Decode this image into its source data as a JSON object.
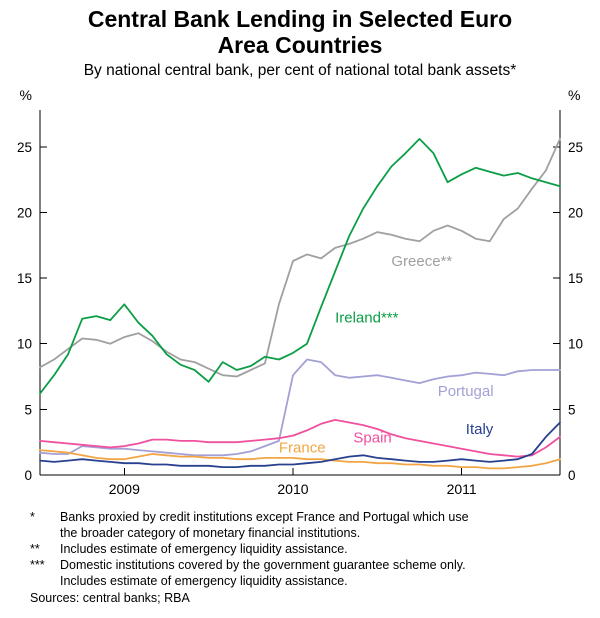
{
  "chart_data": {
    "type": "line",
    "title": "Central Bank Lending in Selected Euro\nArea Countries",
    "subtitle": "By national central bank, per cent of national total bank assets*",
    "unit_left": "%",
    "unit_right": "%",
    "ylim": [
      0,
      27.8
    ],
    "yticks": [
      0,
      5,
      10,
      15,
      20,
      25
    ],
    "grid": false,
    "legend": "inline-labels",
    "x_months": {
      "start": "2008-07",
      "end": "2011-08",
      "count": 38
    },
    "year_ticks": [
      {
        "label": "2009",
        "month_index": 6
      },
      {
        "label": "2010",
        "month_index": 18
      },
      {
        "label": "2011",
        "month_index": 30
      }
    ],
    "series": [
      {
        "id": "greece",
        "name": "Greece",
        "label": "Greece**",
        "color": "#a0a0a0",
        "label_pos": {
          "m": 25,
          "v": 16.3
        },
        "values": [
          8.2,
          8.8,
          9.6,
          10.4,
          10.3,
          10.0,
          10.5,
          10.8,
          10.2,
          9.4,
          8.8,
          8.6,
          8.1,
          7.6,
          7.5,
          8.0,
          8.5,
          13.0,
          16.3,
          16.8,
          16.5,
          17.3,
          17.6,
          18.0,
          18.5,
          18.3,
          18.0,
          17.8,
          18.6,
          19.0,
          18.6,
          18.0,
          17.8,
          19.5,
          20.3,
          21.8,
          23.2,
          25.6
        ]
      },
      {
        "id": "portugal",
        "name": "Portugal",
        "label": "Portugal",
        "color": "#a3a0d6",
        "label_pos": {
          "m": 28.3,
          "v": 6.4
        },
        "values": [
          1.7,
          1.6,
          1.6,
          2.2,
          2.1,
          2.0,
          2.0,
          1.9,
          1.8,
          1.7,
          1.6,
          1.5,
          1.5,
          1.5,
          1.6,
          1.8,
          2.2,
          2.6,
          7.6,
          8.8,
          8.6,
          7.6,
          7.4,
          7.5,
          7.6,
          7.4,
          7.2,
          7.0,
          7.3,
          7.5,
          7.6,
          7.8,
          7.7,
          7.6,
          7.9,
          8.0,
          8.0,
          8.0
        ]
      },
      {
        "id": "france",
        "name": "France",
        "label": "France",
        "color": "#f2a544",
        "label_pos": {
          "m": 17,
          "v": 2.1
        },
        "values": [
          1.9,
          1.8,
          1.7,
          1.5,
          1.3,
          1.2,
          1.2,
          1.4,
          1.6,
          1.5,
          1.4,
          1.4,
          1.3,
          1.3,
          1.2,
          1.2,
          1.3,
          1.3,
          1.3,
          1.2,
          1.2,
          1.1,
          1.0,
          1.0,
          0.9,
          0.9,
          0.8,
          0.8,
          0.7,
          0.7,
          0.6,
          0.6,
          0.5,
          0.5,
          0.6,
          0.7,
          0.9,
          1.2
        ]
      },
      {
        "id": "spain",
        "name": "Spain",
        "label": "Spain",
        "color": "#f0509e",
        "label_pos": {
          "m": 22.3,
          "v": 2.85
        },
        "values": [
          2.6,
          2.5,
          2.4,
          2.3,
          2.2,
          2.1,
          2.2,
          2.4,
          2.7,
          2.7,
          2.6,
          2.6,
          2.5,
          2.5,
          2.5,
          2.6,
          2.7,
          2.8,
          3.0,
          3.4,
          3.9,
          4.2,
          4.0,
          3.8,
          3.5,
          3.1,
          2.8,
          2.6,
          2.4,
          2.2,
          2.0,
          1.8,
          1.6,
          1.5,
          1.4,
          1.5,
          2.1,
          2.9
        ]
      },
      {
        "id": "italy",
        "name": "Italy",
        "label": "Italy",
        "color": "#27418f",
        "label_pos": {
          "m": 30.3,
          "v": 3.5
        },
        "values": [
          1.1,
          1.0,
          1.1,
          1.2,
          1.1,
          1.0,
          0.9,
          0.9,
          0.8,
          0.8,
          0.7,
          0.7,
          0.7,
          0.6,
          0.6,
          0.7,
          0.7,
          0.8,
          0.8,
          0.9,
          1.0,
          1.2,
          1.4,
          1.5,
          1.3,
          1.2,
          1.1,
          1.0,
          1.0,
          1.1,
          1.2,
          1.1,
          1.0,
          1.1,
          1.2,
          1.6,
          2.9,
          4.0
        ]
      },
      {
        "id": "ireland",
        "name": "Ireland",
        "label": "Ireland***",
        "color": "#0b9e46",
        "label_pos": {
          "m": 21,
          "v": 12.0
        },
        "values": [
          6.2,
          7.6,
          9.2,
          11.9,
          12.1,
          11.8,
          13.0,
          11.6,
          10.6,
          9.2,
          8.4,
          8.0,
          7.1,
          8.6,
          8.0,
          8.3,
          9.0,
          8.8,
          9.3,
          10.0,
          12.8,
          15.5,
          18.2,
          20.3,
          22.0,
          23.5,
          24.5,
          25.6,
          24.5,
          22.3,
          22.9,
          23.4,
          23.1,
          22.8,
          23.0,
          22.6,
          22.3,
          22.0
        ]
      }
    ]
  },
  "footnotes": [
    {
      "marker": "*",
      "text": "Banks proxied by credit institutions except France and Portugal which use\nthe broader category of monetary financial institutions."
    },
    {
      "marker": "**",
      "text": "Includes estimate of emergency liquidity assistance."
    },
    {
      "marker": "***",
      "text": "Domestic institutions covered by the government guarantee scheme only.\nIncludes estimate of emergency liquidity assistance."
    }
  ],
  "sources": "Sources: central banks; RBA"
}
